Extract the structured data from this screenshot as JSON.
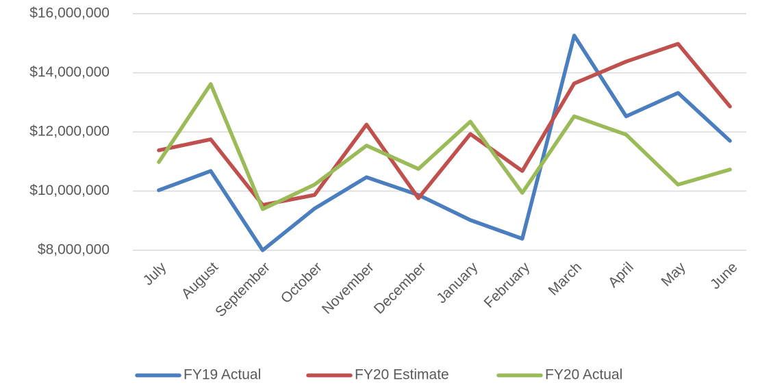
{
  "chart_data": {
    "type": "line",
    "categories": [
      "July",
      "August",
      "September",
      "October",
      "November",
      "December",
      "January",
      "February",
      "March",
      "April",
      "May",
      "June"
    ],
    "series": [
      {
        "name": "FY19 Actual",
        "color": "#4a7ebf",
        "values": [
          10030000,
          10680000,
          8000000,
          9410000,
          10470000,
          9870000,
          9020000,
          8390000,
          15260000,
          12530000,
          13320000,
          11700000
        ]
      },
      {
        "name": "FY20 Estimate",
        "color": "#c0504d",
        "values": [
          11380000,
          11750000,
          9530000,
          9870000,
          12250000,
          9760000,
          11930000,
          10680000,
          13640000,
          14380000,
          14980000,
          12860000
        ]
      },
      {
        "name": "FY20 Actual",
        "color": "#9bbb59",
        "values": [
          10980000,
          13620000,
          9390000,
          10220000,
          11540000,
          10750000,
          12350000,
          9940000,
          12530000,
          11910000,
          10220000,
          10730000
        ]
      }
    ],
    "ylim": [
      8000000,
      16000000
    ],
    "yticks": [
      {
        "value": 8000000,
        "label": "$8,000,000"
      },
      {
        "value": 10000000,
        "label": "$10,000,000"
      },
      {
        "value": 12000000,
        "label": "$12,000,000"
      },
      {
        "value": 14000000,
        "label": "$14,000,000"
      },
      {
        "value": 16000000,
        "label": "$16,000,000"
      }
    ],
    "grid": true,
    "legend": "bottom"
  }
}
